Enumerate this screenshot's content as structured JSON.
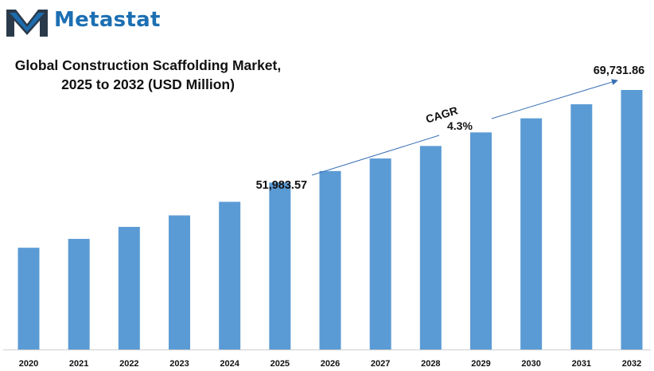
{
  "brand": {
    "name": "Metastat",
    "color": "#1c6fb3",
    "icon": "metastat-m-logo-icon"
  },
  "chart_data": {
    "type": "bar",
    "title": "Global Construction  Scaffolding Market,",
    "subtitle": "2025 to 2032 (USD Million)",
    "categories": [
      "2020",
      "2021",
      "2022",
      "2023",
      "2024",
      "2025",
      "2026",
      "2027",
      "2028",
      "2029",
      "2030",
      "2031",
      "2032"
    ],
    "values": [
      39500,
      41200,
      43500,
      45700,
      48300,
      51983.57,
      54200,
      56600,
      59000,
      61600,
      64300,
      67000,
      69731.86
    ],
    "bar_color": "#5b9bd5",
    "ylim": [
      20000,
      72000
    ],
    "grid": false,
    "legend": "none",
    "annotations": {
      "start_value": "51,983.57",
      "end_value": "69,731.86",
      "cagr_label": "CAGR",
      "cagr_value": "4.3%"
    }
  }
}
